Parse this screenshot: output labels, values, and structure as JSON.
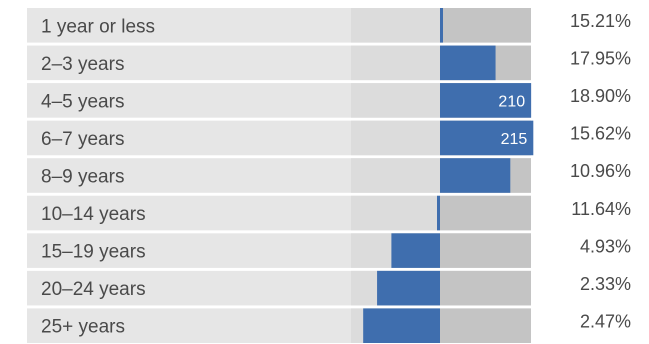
{
  "colors": {
    "row_background": "#e6e6e6",
    "left_track": "#dcdcdc",
    "right_track": "#c4c4c4",
    "bar": "#3f6eae",
    "text": "#4a4a4a",
    "bar_label": "#ffffff"
  },
  "chart_data": {
    "type": "bar",
    "orientation": "horizontal-diverging",
    "baseline": 0,
    "title": "",
    "xlabel": "",
    "ylabel": "",
    "categories": [
      "1 year or less",
      "2–3 years",
      "4–5 years",
      "6–7 years",
      "8–9 years",
      "10–14 years",
      "15–19 years",
      "20–24 years",
      "25+ years"
    ],
    "values": [
      2,
      128,
      210,
      215,
      162,
      -4,
      -112,
      -145,
      -177
    ],
    "value_labels": [
      "",
      "",
      "210",
      "215",
      "",
      "",
      "",
      "",
      ""
    ],
    "percentages": [
      "15.21%",
      "17.95%",
      "18.90%",
      "15.62%",
      "10.96%",
      "11.64%",
      "4.93%",
      "2.33%",
      "2.47%"
    ],
    "xlim": [
      -200,
      200
    ],
    "grid": false,
    "legend": "none"
  }
}
